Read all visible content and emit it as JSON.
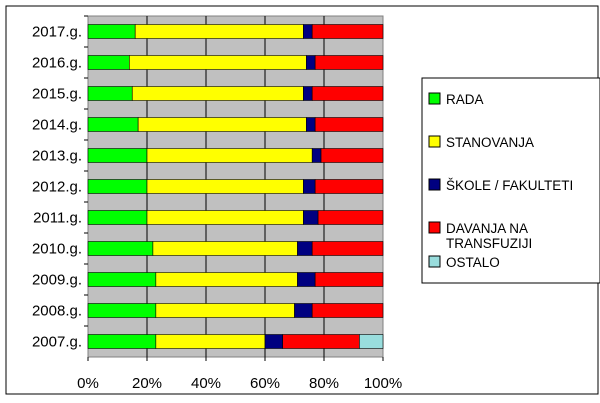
{
  "chart_data": {
    "type": "bar",
    "orientation": "horizontal",
    "stacked": "percent",
    "title": "",
    "xlabel": "",
    "ylabel": "",
    "xlim": [
      0,
      100
    ],
    "x_ticks": [
      "0%",
      "20%",
      "40%",
      "60%",
      "80%",
      "100%"
    ],
    "grid": true,
    "legend_position": "right",
    "categories": [
      "2017.g.",
      "2016.g.",
      "2015.g.",
      "2014.g.",
      "2013.g.",
      "2012.g.",
      "2011.g.",
      "2010.g.",
      "2009.g.",
      "2008.g.",
      "2007.g."
    ],
    "series": [
      {
        "name": "RADA",
        "color": "#00ff00",
        "values": [
          16,
          14,
          15,
          17,
          20,
          20,
          20,
          22,
          23,
          23,
          23
        ]
      },
      {
        "name": "STANOVANJA",
        "color": "#ffff00",
        "values": [
          57,
          60,
          58,
          57,
          56,
          53,
          53,
          49,
          48,
          47,
          37
        ]
      },
      {
        "name": "ŠKOLE / FAKULTETI",
        "color": "#000080",
        "values": [
          3,
          3,
          3,
          3,
          3,
          4,
          5,
          5,
          6,
          6,
          6
        ]
      },
      {
        "name": "DAVANJA NA TRANSFUZIJI",
        "color": "#ff0000",
        "values": [
          24,
          23,
          24,
          23,
          21,
          23,
          22,
          24,
          23,
          24,
          26
        ]
      },
      {
        "name": "OSTALO",
        "color": "#99dddd",
        "values": [
          0,
          0,
          0,
          0,
          0,
          0,
          0,
          0,
          0,
          0,
          8
        ]
      }
    ]
  }
}
